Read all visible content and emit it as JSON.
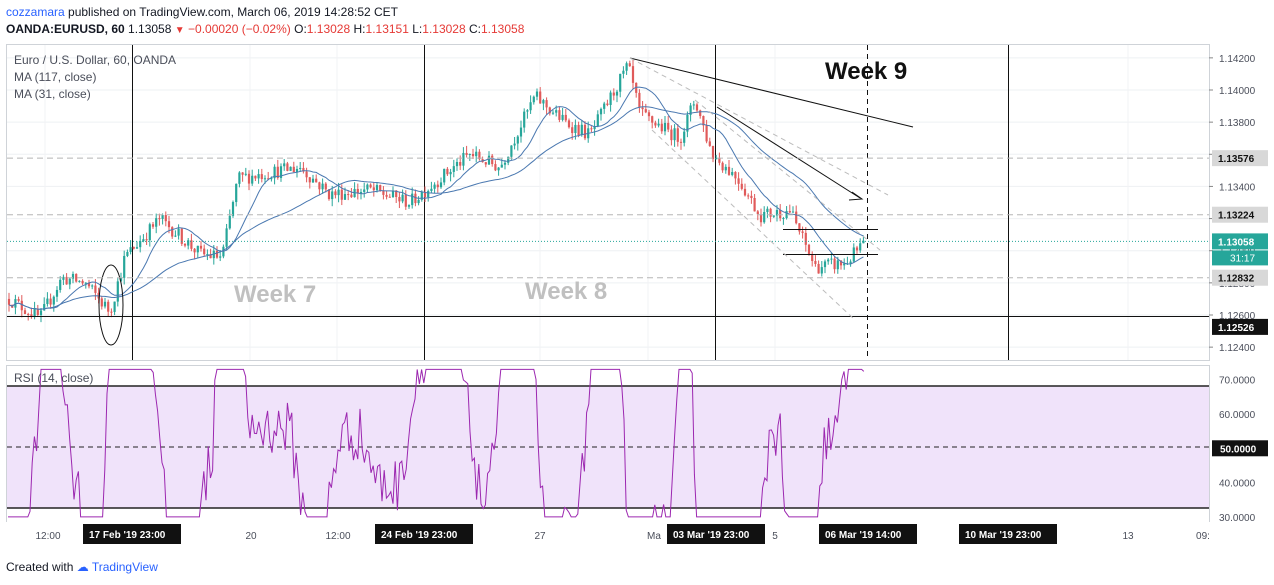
{
  "header": {
    "user": "cozzamara",
    "published_text": "published on TradingView.com, March 06, 2019 14:28:52 CET",
    "symbol": "OANDA:EURUSD, 60",
    "last": "1.13058",
    "change": "−0.00020 (−0.02%)",
    "open_label": "O:",
    "open": "1.13028",
    "high_label": "H:",
    "high": "1.13151",
    "low_label": "L:",
    "low": "1.13028",
    "close_label": "C:",
    "close": "1.13058"
  },
  "legend": {
    "title": "Euro / U.S. Dollar, 60, OANDA",
    "ma1": "MA (117, close)",
    "ma2": "MA (31, close)",
    "rsi": "RSI (14, close)"
  },
  "annotations": {
    "week7": "Week 7",
    "week8": "Week 8",
    "week9": "Week 9"
  },
  "footer": {
    "created_with": "Created with",
    "brand": "TradingView"
  },
  "colors": {
    "up": "#26a69a",
    "down": "#e05a5a",
    "ma": "#4a78b0",
    "rsi": "#9c27b0",
    "rsi_band": "#f0e3fa",
    "axis_text": "#4a4e5a"
  },
  "chart_data": [
    {
      "type": "candlestick",
      "title": "Euro / U.S. Dollar, 60, OANDA",
      "ylim": [
        1.1232,
        1.1428
      ],
      "y_ticks": [
        "1.14200",
        "1.14000",
        "1.13800",
        "1.13600",
        "1.13400",
        "1.13200",
        "1.13000",
        "1.12800",
        "1.12600",
        "1.12400"
      ],
      "price_labels": [
        {
          "value": 1.13576,
          "text": "1.13576"
        },
        {
          "value": 1.13224,
          "text": "1.13224"
        },
        {
          "value": 1.13058,
          "text": "1.13058"
        },
        {
          "value": 1.12832,
          "text": "1.12832"
        },
        {
          "value": 1.12526,
          "text": "1.12526"
        }
      ],
      "countdown": "31:17",
      "approx_range": {
        "start": 1.127,
        "high": 1.1418,
        "low": 1.1253,
        "end": 1.13058
      },
      "series": [
        {
          "name": "MA (117, close)"
        },
        {
          "name": "MA (31, close)"
        }
      ]
    },
    {
      "type": "line",
      "title": "RSI (14, close)",
      "ylim": [
        28.5,
        74
      ],
      "y_ticks": [
        "70.0000",
        "60.0000",
        "50.0000",
        "40.0000",
        "30.0000"
      ],
      "band": [
        30,
        70
      ],
      "midline": 50,
      "current_label": "50.0000"
    }
  ],
  "x_axis": {
    "ticks": [
      "12:00",
      "20",
      "12:00",
      "27",
      "Ma",
      "5",
      "14:00",
      "13",
      "09:"
    ],
    "date_labels": [
      "17 Feb '19   23:00",
      "24 Feb '19   23:00",
      "03 Mar '19   23:00",
      "06 Mar '19   14:00",
      "10 Mar '19   23:00"
    ]
  }
}
